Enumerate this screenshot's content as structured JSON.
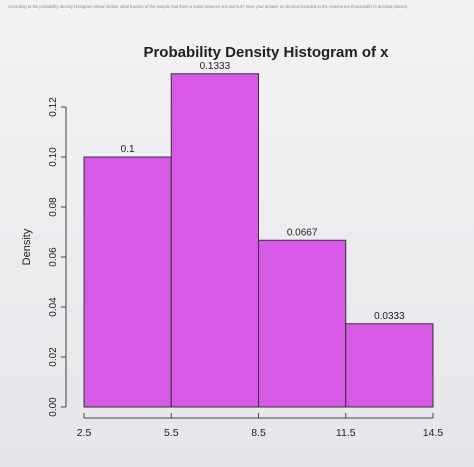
{
  "question": "According to the probability density histogram shown below, what fraction of the sample had them a value between 8.5 and 5.5? Give your answer as decimal rounded to the nearest ten thousandth (4 decimal places).",
  "chart_data": {
    "type": "bar",
    "title": "Probability Density Histogram of x",
    "xlabel": "",
    "ylabel": "Density",
    "bin_edges": [
      2.5,
      5.5,
      8.5,
      11.5,
      14.5
    ],
    "values": [
      0.1,
      0.1333,
      0.0667,
      0.0333
    ],
    "value_labels": [
      "0.1",
      "0.1333",
      "0.0667",
      "0.0333"
    ],
    "x_ticks": [
      "2.5",
      "5.5",
      "8.5",
      "11.5",
      "14.5"
    ],
    "y_ticks": [
      "0.00",
      "0.02",
      "0.04",
      "0.06",
      "0.08",
      "0.10",
      "0.12"
    ],
    "ylim": [
      0,
      0.12
    ],
    "grid": false,
    "bar_color": "#d65ae6",
    "bar_edge_color": "#333333"
  }
}
